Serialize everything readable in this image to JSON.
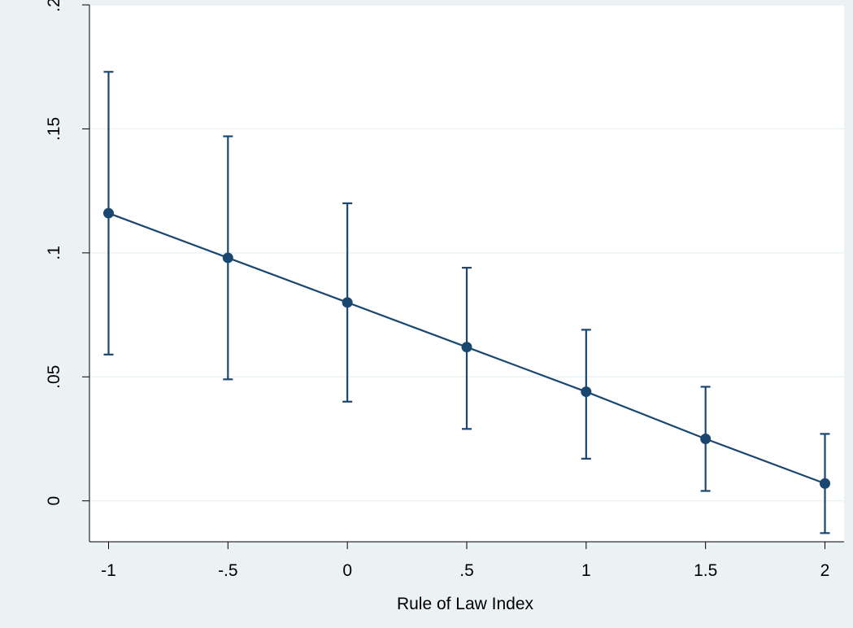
{
  "chart_data": {
    "type": "line",
    "title": "",
    "xlabel": "Rule of Law Index",
    "ylabel": "",
    "x": [
      -1,
      -0.5,
      0,
      0.5,
      1,
      1.5,
      2
    ],
    "x_tick_labels": [
      "-1",
      "-.5",
      "0",
      ".5",
      "1",
      "1.5",
      "2"
    ],
    "xlim": [
      -1.08,
      2.08
    ],
    "y_ticks": [
      0,
      0.05,
      0.1,
      0.15,
      0.2
    ],
    "y_tick_labels": [
      "0",
      ".05",
      ".1",
      ".15",
      ".2"
    ],
    "ylim": [
      -0.0165,
      0.2
    ],
    "grid": true,
    "series": [
      {
        "values": [
          0.116,
          0.098,
          0.08,
          0.062,
          0.044,
          0.025,
          0.007
        ],
        "ci_lower": [
          0.059,
          0.049,
          0.04,
          0.029,
          0.017,
          0.004,
          -0.013
        ],
        "ci_upper": [
          0.173,
          0.147,
          0.12,
          0.094,
          0.069,
          0.046,
          0.027
        ],
        "color": "#1a476f"
      }
    ],
    "colors": {
      "background": "#eaf2f3",
      "plot_area": "#ffffff",
      "gridline": "#eaf2f3",
      "series": "#1a476f"
    }
  }
}
